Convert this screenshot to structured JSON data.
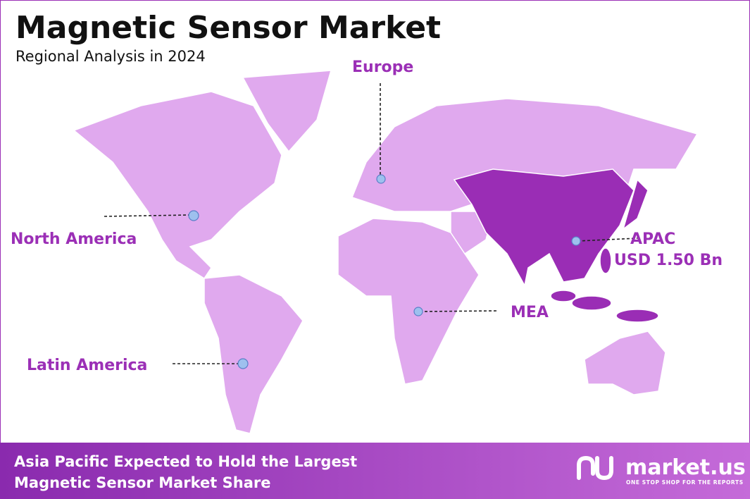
{
  "header": {
    "title": "Magnetic Sensor Market",
    "subtitle": "Regional Analysis in 2024"
  },
  "regions": [
    {
      "label": "Europe"
    },
    {
      "label": "North America"
    },
    {
      "label": "Latin America"
    },
    {
      "label": "MEA"
    },
    {
      "label": "APAC",
      "value": "USD 1.50 Bn"
    }
  ],
  "footer": {
    "lines": [
      "Asia Pacific Expected to Hold the Largest",
      "Magnetic Sensor Market Share"
    ]
  },
  "brand": {
    "name": "market.us",
    "tagline": "ONE STOP SHOP FOR THE REPORTS"
  }
}
